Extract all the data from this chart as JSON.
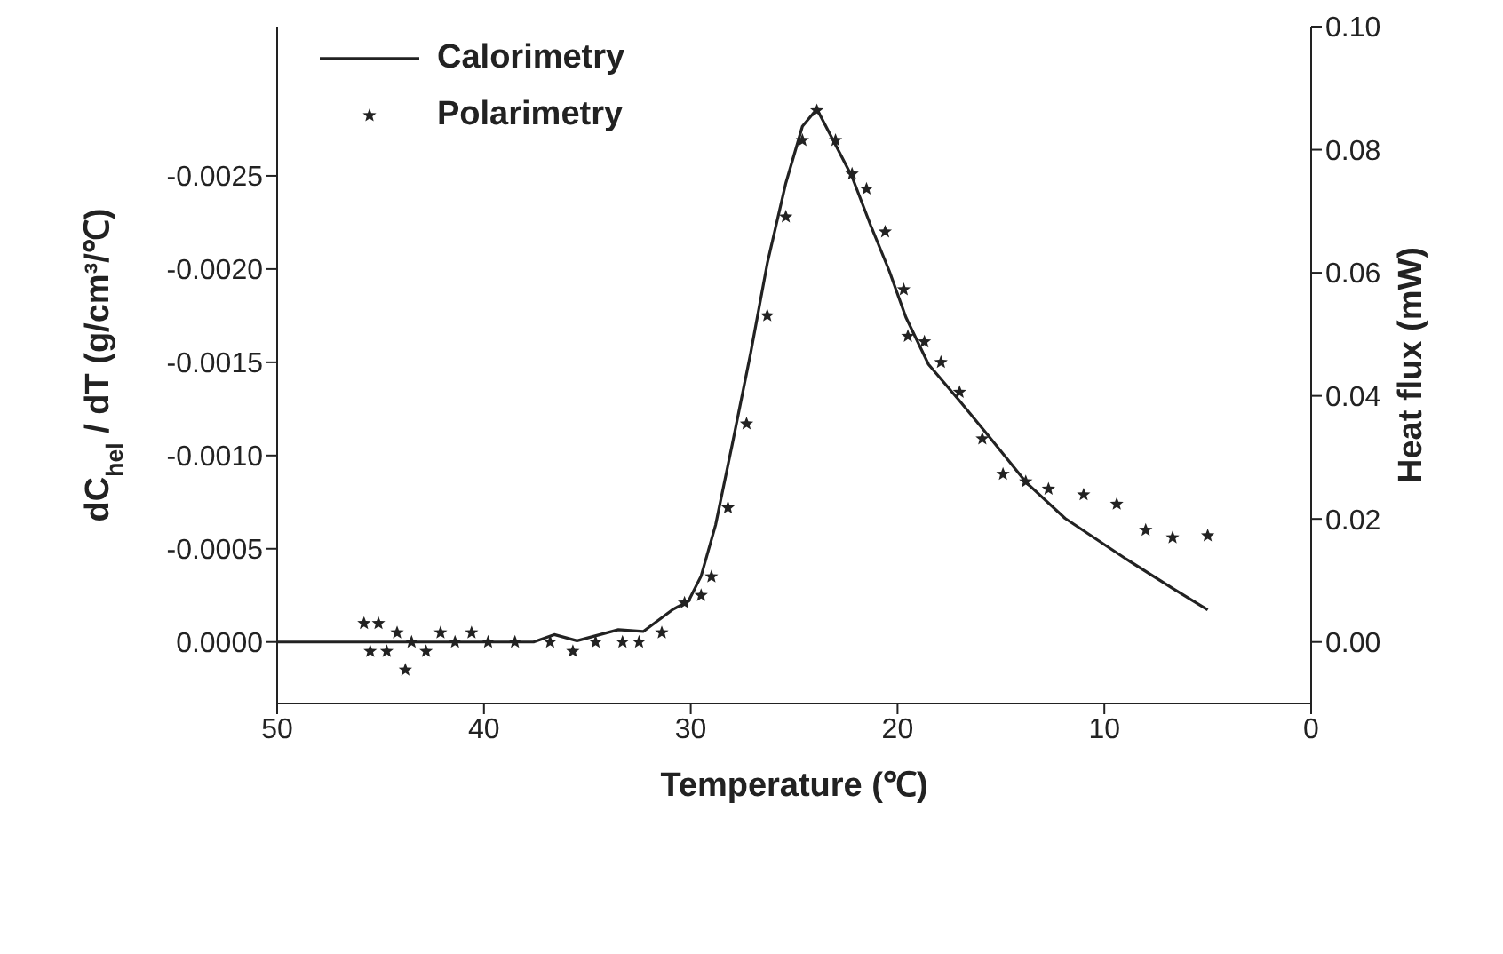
{
  "chart_data": {
    "type": "line",
    "xlabel": "Temperature (℃)",
    "ylabel": "dC$_{hel}$ / dT (g/cm³/℃)",
    "y2label": "Heat flux (mW)",
    "xlim": [
      50,
      0
    ],
    "xticks": [
      50,
      40,
      30,
      20,
      10,
      0
    ],
    "ylim": [
      0.00033,
      -0.0033
    ],
    "yticks": [
      {
        "value": 0,
        "label": "0.0000"
      },
      {
        "value": -0.0005,
        "label": "-0.0005"
      },
      {
        "value": -0.001,
        "label": "-0.0010"
      },
      {
        "value": -0.0015,
        "label": "-0.0015"
      },
      {
        "value": -0.002,
        "label": "-0.0020"
      },
      {
        "value": -0.0025,
        "label": "-0.0025"
      }
    ],
    "y2lim": [
      -0.01,
      0.1
    ],
    "y2ticks": [
      {
        "value": 0,
        "label": "0.00"
      },
      {
        "value": 0.02,
        "label": "0.02"
      },
      {
        "value": 0.04,
        "label": "0.04"
      },
      {
        "value": 0.06,
        "label": "0.06"
      },
      {
        "value": 0.08,
        "label": "0.08"
      },
      {
        "value": 0.1,
        "label": "0.10"
      }
    ],
    "legend": "top left",
    "grid": false,
    "series": [
      {
        "name": "Calorimetry",
        "axis": "y2",
        "color": "#222222",
        "x": [
          50,
          46.2,
          41.9,
          37.6,
          36.6,
          35.5,
          33.5,
          32.3,
          30.9,
          30.1,
          29.5,
          28.8,
          28.0,
          27.1,
          26.3,
          25.4,
          24.6,
          23.9,
          23.0,
          22.2,
          21.3,
          20.4,
          19.6,
          18.5,
          17.0,
          15.6,
          13.8,
          11.9,
          9.0,
          6.7,
          5.0
        ],
        "values": [
          0.0,
          0.0,
          0.0,
          0.0,
          0.0012,
          0.0002,
          0.002,
          0.0017,
          0.0052,
          0.0067,
          0.0107,
          0.019,
          0.032,
          0.047,
          0.0615,
          0.0746,
          0.0838,
          0.0866,
          0.0808,
          0.0756,
          0.0677,
          0.0603,
          0.0528,
          0.0451,
          0.0392,
          0.0335,
          0.026,
          0.0201,
          0.0136,
          0.0087,
          0.0052
        ]
      },
      {
        "name": "Polarimetry",
        "type": "scatter",
        "marker": "star",
        "color": "#222222",
        "x": [
          45.8,
          45.5,
          45.1,
          44.7,
          44.2,
          43.8,
          43.5,
          42.8,
          42.1,
          41.4,
          40.6,
          39.8,
          38.5,
          36.8,
          35.7,
          34.6,
          33.3,
          32.5,
          31.4,
          30.3,
          29.5,
          29.0,
          28.2,
          27.3,
          26.3,
          25.4,
          24.6,
          23.9,
          23.0,
          22.2,
          21.5,
          20.6,
          19.7,
          19.5,
          18.7,
          17.9,
          17.0,
          15.9,
          14.9,
          13.8,
          12.7,
          11.0,
          9.4,
          8.0,
          6.7,
          5.0
        ],
        "values": [
          -0.0001,
          5e-05,
          -0.0001,
          5e-05,
          -5e-05,
          0.00015,
          0.0,
          5e-05,
          -5e-05,
          0.0,
          -5e-05,
          0.0,
          0.0,
          0.0,
          5e-05,
          0.0,
          0.0,
          0.0,
          -5e-05,
          -0.00021,
          -0.00025,
          -0.00035,
          -0.00072,
          -0.00117,
          -0.00175,
          -0.00228,
          -0.00269,
          -0.00285,
          -0.00269,
          -0.00251,
          -0.00243,
          -0.0022,
          -0.00189,
          -0.00164,
          -0.00161,
          -0.0015,
          -0.00134,
          -0.00109,
          -0.0009,
          -0.00086,
          -0.00082,
          -0.00079,
          -0.00074,
          -0.0006,
          -0.00056,
          -0.00057
        ]
      }
    ]
  }
}
